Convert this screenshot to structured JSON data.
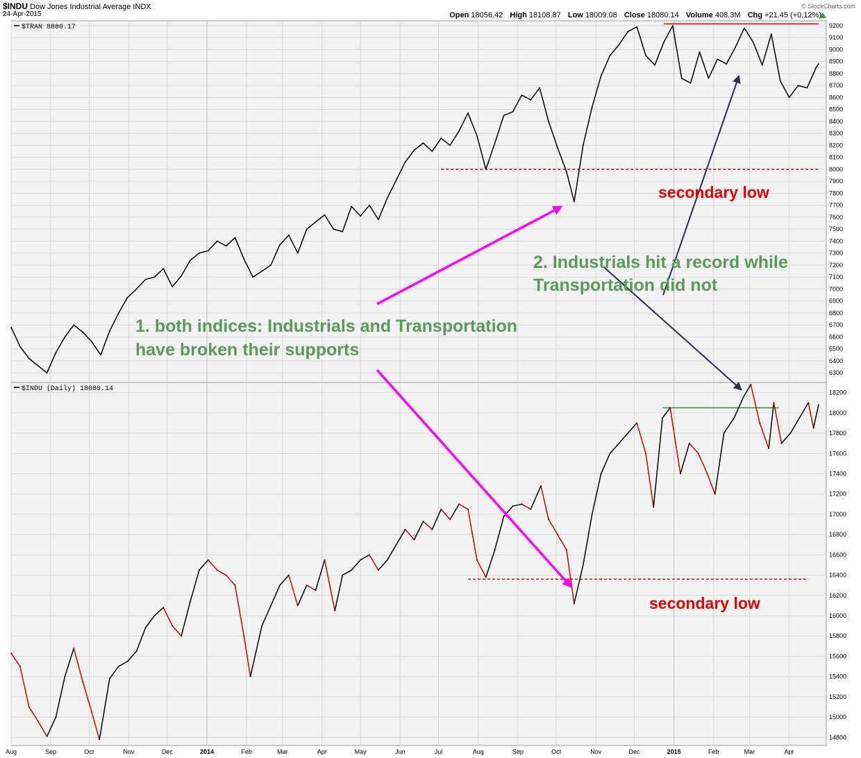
{
  "header": {
    "symbol": "$INDU",
    "name": "Dow Jones Industrial Average INDX",
    "date": "24-Apr-2015",
    "brand": "© StockCharts.com",
    "open_label": "Open",
    "open_value": "18056.42",
    "high_label": "High",
    "high_value": "18108.87",
    "low_label": "Low",
    "low_value": "18009.08",
    "close_label": "Close",
    "close_value": "18080.14",
    "volume_label": "Volume",
    "volume_value": "408.3M",
    "chg_label": "Chg",
    "chg_value": "+21.45 (+0.12%)"
  },
  "colors": {
    "panel_bg": "#f2f2f2",
    "grid": "#d8d8d8",
    "line_black": "#000000",
    "line_red": "#cc0000",
    "support_red": "#cc0000",
    "support_green": "#2e8b3a",
    "magenta": "#ff00ff",
    "navy": "#2b2d4e",
    "ann_green": "#5a9a5a",
    "ann_red": "#e00000"
  },
  "chart_data": [
    {
      "type": "line",
      "panel": "top",
      "label": "$TRAN 8880.17",
      "y_ticks": [
        6300,
        6400,
        6500,
        6600,
        6700,
        6800,
        6900,
        7000,
        7100,
        7200,
        7300,
        7400,
        7500,
        7600,
        7700,
        7800,
        7900,
        8000,
        8100,
        8200,
        8300,
        8400,
        8500,
        8600,
        8700,
        8800,
        8900,
        9000,
        9100,
        9200
      ],
      "ylim": [
        6220,
        9240
      ],
      "series": [
        {
          "color": "#000000",
          "points": [
            [
              "2013-08-01",
              6680
            ],
            [
              "2013-08-08",
              6520
            ],
            [
              "2013-08-15",
              6420
            ],
            [
              "2013-08-22",
              6360
            ],
            [
              "2013-08-29",
              6300
            ],
            [
              "2013-09-05",
              6470
            ],
            [
              "2013-09-12",
              6600
            ],
            [
              "2013-09-19",
              6700
            ],
            [
              "2013-09-26",
              6640
            ],
            [
              "2013-10-03",
              6560
            ],
            [
              "2013-10-10",
              6450
            ],
            [
              "2013-10-17",
              6650
            ],
            [
              "2013-10-24",
              6800
            ],
            [
              "2013-10-31",
              6930
            ],
            [
              "2013-11-07",
              7000
            ],
            [
              "2013-11-14",
              7080
            ],
            [
              "2013-11-21",
              7100
            ],
            [
              "2013-11-28",
              7170
            ],
            [
              "2013-12-05",
              7020
            ],
            [
              "2013-12-12",
              7110
            ],
            [
              "2013-12-19",
              7240
            ],
            [
              "2013-12-26",
              7300
            ],
            [
              "2014-01-02",
              7320
            ],
            [
              "2014-01-09",
              7400
            ],
            [
              "2014-01-16",
              7360
            ],
            [
              "2014-01-23",
              7430
            ],
            [
              "2014-01-30",
              7250
            ],
            [
              "2014-02-06",
              7100
            ],
            [
              "2014-02-13",
              7150
            ],
            [
              "2014-02-20",
              7200
            ],
            [
              "2014-02-27",
              7370
            ],
            [
              "2014-03-06",
              7450
            ],
            [
              "2014-03-13",
              7300
            ],
            [
              "2014-03-20",
              7500
            ],
            [
              "2014-03-27",
              7560
            ],
            [
              "2014-04-03",
              7620
            ],
            [
              "2014-04-10",
              7500
            ],
            [
              "2014-04-17",
              7480
            ],
            [
              "2014-04-24",
              7690
            ],
            [
              "2014-05-01",
              7610
            ],
            [
              "2014-05-08",
              7700
            ],
            [
              "2014-05-15",
              7580
            ],
            [
              "2014-05-22",
              7760
            ],
            [
              "2014-05-29",
              7910
            ],
            [
              "2014-06-05",
              8060
            ],
            [
              "2014-06-12",
              8160
            ],
            [
              "2014-06-19",
              8220
            ],
            [
              "2014-06-26",
              8150
            ],
            [
              "2014-07-03",
              8260
            ],
            [
              "2014-07-10",
              8200
            ],
            [
              "2014-07-17",
              8320
            ],
            [
              "2014-07-24",
              8470
            ],
            [
              "2014-07-31",
              8280
            ],
            [
              "2014-08-07",
              8000
            ],
            [
              "2014-08-14",
              8220
            ],
            [
              "2014-08-21",
              8450
            ],
            [
              "2014-08-28",
              8480
            ],
            [
              "2014-09-04",
              8620
            ],
            [
              "2014-09-11",
              8580
            ],
            [
              "2014-09-18",
              8680
            ],
            [
              "2014-09-25",
              8400
            ],
            [
              "2014-10-02",
              8180
            ],
            [
              "2014-10-09",
              7980
            ],
            [
              "2014-10-15",
              7730
            ],
            [
              "2014-10-22",
              8200
            ],
            [
              "2014-10-29",
              8520
            ],
            [
              "2014-11-05",
              8780
            ],
            [
              "2014-11-12",
              8950
            ],
            [
              "2014-11-19",
              9040
            ],
            [
              "2014-11-26",
              9150
            ],
            [
              "2014-12-03",
              9190
            ],
            [
              "2014-12-10",
              8950
            ],
            [
              "2014-12-17",
              8870
            ],
            [
              "2014-12-24",
              9060
            ],
            [
              "2014-12-31",
              9200
            ],
            [
              "2015-01-07",
              8760
            ],
            [
              "2015-01-14",
              8720
            ],
            [
              "2015-01-21",
              8980
            ],
            [
              "2015-01-28",
              8760
            ],
            [
              "2015-02-04",
              8920
            ],
            [
              "2015-02-11",
              8880
            ],
            [
              "2015-02-18",
              9020
            ],
            [
              "2015-02-25",
              9180
            ],
            [
              "2015-03-04",
              9060
            ],
            [
              "2015-03-11",
              8870
            ],
            [
              "2015-03-18",
              9130
            ],
            [
              "2015-03-25",
              8740
            ],
            [
              "2015-04-01",
              8600
            ],
            [
              "2015-04-08",
              8700
            ],
            [
              "2015-04-15",
              8680
            ],
            [
              "2015-04-22",
              8850
            ],
            [
              "2015-04-24",
              8880
            ]
          ]
        }
      ],
      "support": {
        "value": 8000,
        "from": "2014-07-03",
        "to": "2015-04-24"
      },
      "resistance": {
        "value": 9215,
        "from": "2014-12-24",
        "to": "2015-04-24"
      }
    },
    {
      "type": "line",
      "panel": "bottom",
      "label": "$INDU (Daily) 18080.14",
      "y_ticks": [
        14800,
        15000,
        15200,
        15400,
        15600,
        15800,
        16000,
        16200,
        16400,
        16600,
        16800,
        17000,
        17200,
        17400,
        17600,
        17800,
        18000,
        18200
      ],
      "ylim": [
        14720,
        18300
      ],
      "series": [
        {
          "color": "#000000",
          "down_color": "#cc0000",
          "points": [
            [
              "2013-08-01",
              15630
            ],
            [
              "2013-08-08",
              15500
            ],
            [
              "2013-08-15",
              15100
            ],
            [
              "2013-08-22",
              14960
            ],
            [
              "2013-08-29",
              14810
            ],
            [
              "2013-09-05",
              15000
            ],
            [
              "2013-09-12",
              15400
            ],
            [
              "2013-09-19",
              15680
            ],
            [
              "2013-09-26",
              15350
            ],
            [
              "2013-10-03",
              15050
            ],
            [
              "2013-10-09",
              14780
            ],
            [
              "2013-10-17",
              15380
            ],
            [
              "2013-10-24",
              15500
            ],
            [
              "2013-10-31",
              15550
            ],
            [
              "2013-11-07",
              15650
            ],
            [
              "2013-11-14",
              15880
            ],
            [
              "2013-11-21",
              16000
            ],
            [
              "2013-11-28",
              16080
            ],
            [
              "2013-12-05",
              15900
            ],
            [
              "2013-12-12",
              15800
            ],
            [
              "2013-12-19",
              16140
            ],
            [
              "2013-12-26",
              16450
            ],
            [
              "2014-01-02",
              16550
            ],
            [
              "2014-01-09",
              16450
            ],
            [
              "2014-01-16",
              16400
            ],
            [
              "2014-01-23",
              16300
            ],
            [
              "2014-01-30",
              15800
            ],
            [
              "2014-02-04",
              15400
            ],
            [
              "2014-02-13",
              15900
            ],
            [
              "2014-02-20",
              16100
            ],
            [
              "2014-02-27",
              16300
            ],
            [
              "2014-03-06",
              16400
            ],
            [
              "2014-03-13",
              16100
            ],
            [
              "2014-03-20",
              16300
            ],
            [
              "2014-03-27",
              16250
            ],
            [
              "2014-04-03",
              16550
            ],
            [
              "2014-04-11",
              16050
            ],
            [
              "2014-04-17",
              16400
            ],
            [
              "2014-04-24",
              16450
            ],
            [
              "2014-05-01",
              16550
            ],
            [
              "2014-05-08",
              16600
            ],
            [
              "2014-05-15",
              16450
            ],
            [
              "2014-05-22",
              16550
            ],
            [
              "2014-05-29",
              16700
            ],
            [
              "2014-06-05",
              16850
            ],
            [
              "2014-06-12",
              16750
            ],
            [
              "2014-06-19",
              16930
            ],
            [
              "2014-06-26",
              16850
            ],
            [
              "2014-07-03",
              17050
            ],
            [
              "2014-07-10",
              16950
            ],
            [
              "2014-07-17",
              17100
            ],
            [
              "2014-07-24",
              17050
            ],
            [
              "2014-07-31",
              16550
            ],
            [
              "2014-08-07",
              16380
            ],
            [
              "2014-08-14",
              16650
            ],
            [
              "2014-08-21",
              16980
            ],
            [
              "2014-08-28",
              17080
            ],
            [
              "2014-09-04",
              17100
            ],
            [
              "2014-09-11",
              17050
            ],
            [
              "2014-09-19",
              17280
            ],
            [
              "2014-09-25",
              16950
            ],
            [
              "2014-10-02",
              16800
            ],
            [
              "2014-10-09",
              16650
            ],
            [
              "2014-10-15",
              16120
            ],
            [
              "2014-10-22",
              16500
            ],
            [
              "2014-10-29",
              17000
            ],
            [
              "2014-11-05",
              17400
            ],
            [
              "2014-11-12",
              17600
            ],
            [
              "2014-11-19",
              17700
            ],
            [
              "2014-11-26",
              17800
            ],
            [
              "2014-12-03",
              17900
            ],
            [
              "2014-12-10",
              17600
            ],
            [
              "2014-12-16",
              17070
            ],
            [
              "2014-12-23",
              17950
            ],
            [
              "2014-12-29",
              18050
            ],
            [
              "2015-01-06",
              17400
            ],
            [
              "2015-01-13",
              17700
            ],
            [
              "2015-01-20",
              17600
            ],
            [
              "2015-01-27",
              17400
            ],
            [
              "2015-02-02",
              17200
            ],
            [
              "2015-02-09",
              17800
            ],
            [
              "2015-02-17",
              17950
            ],
            [
              "2015-02-24",
              18150
            ],
            [
              "2015-03-02",
              18280
            ],
            [
              "2015-03-09",
              17900
            ],
            [
              "2015-03-16",
              17650
            ],
            [
              "2015-03-20",
              18100
            ],
            [
              "2015-03-26",
              17700
            ],
            [
              "2015-04-02",
              17800
            ],
            [
              "2015-04-09",
              17950
            ],
            [
              "2015-04-16",
              18100
            ],
            [
              "2015-04-20",
              17850
            ],
            [
              "2015-04-24",
              18080
            ]
          ]
        }
      ],
      "support": {
        "value": 16360,
        "from": "2014-07-24",
        "to": "2015-04-16"
      },
      "resistance": {
        "value": 18050,
        "from": "2014-12-23",
        "to": "2015-03-24"
      }
    }
  ],
  "x_axis": {
    "labels": [
      {
        "text": "Aug",
        "date": "2013-08-01"
      },
      {
        "text": "Sep",
        "date": "2013-09-01"
      },
      {
        "text": "Oct",
        "date": "2013-10-01"
      },
      {
        "text": "Nov",
        "date": "2013-11-01"
      },
      {
        "text": "Dec",
        "date": "2013-12-01"
      },
      {
        "text": "2014",
        "date": "2014-01-01",
        "bold": true
      },
      {
        "text": "Feb",
        "date": "2014-02-01"
      },
      {
        "text": "Mar",
        "date": "2014-03-01"
      },
      {
        "text": "Apr",
        "date": "2014-04-01"
      },
      {
        "text": "May",
        "date": "2014-05-01"
      },
      {
        "text": "Jun",
        "date": "2014-06-01"
      },
      {
        "text": "Jul",
        "date": "2014-07-01"
      },
      {
        "text": "Aug",
        "date": "2014-08-01"
      },
      {
        "text": "Sep",
        "date": "2014-09-01"
      },
      {
        "text": "Oct",
        "date": "2014-10-01"
      },
      {
        "text": "Nov",
        "date": "2014-11-01"
      },
      {
        "text": "Dec",
        "date": "2014-12-01"
      },
      {
        "text": "2015",
        "date": "2015-01-01",
        "bold": true
      },
      {
        "text": "Feb",
        "date": "2015-02-01"
      },
      {
        "text": "Mar",
        "date": "2015-03-01"
      },
      {
        "text": "Apr",
        "date": "2015-04-01"
      }
    ],
    "range": [
      "2013-08-01",
      "2015-04-30"
    ]
  },
  "annotations": {
    "secondary_low_top": "secondary low",
    "secondary_low_bottom": "secondary low",
    "record_line1": "2. Industrials hit a record while",
    "record_line2": "Transportation did not",
    "broken_line1": "1. both indices: Industrials and Transportation",
    "broken_line2": "have broken their supports"
  }
}
